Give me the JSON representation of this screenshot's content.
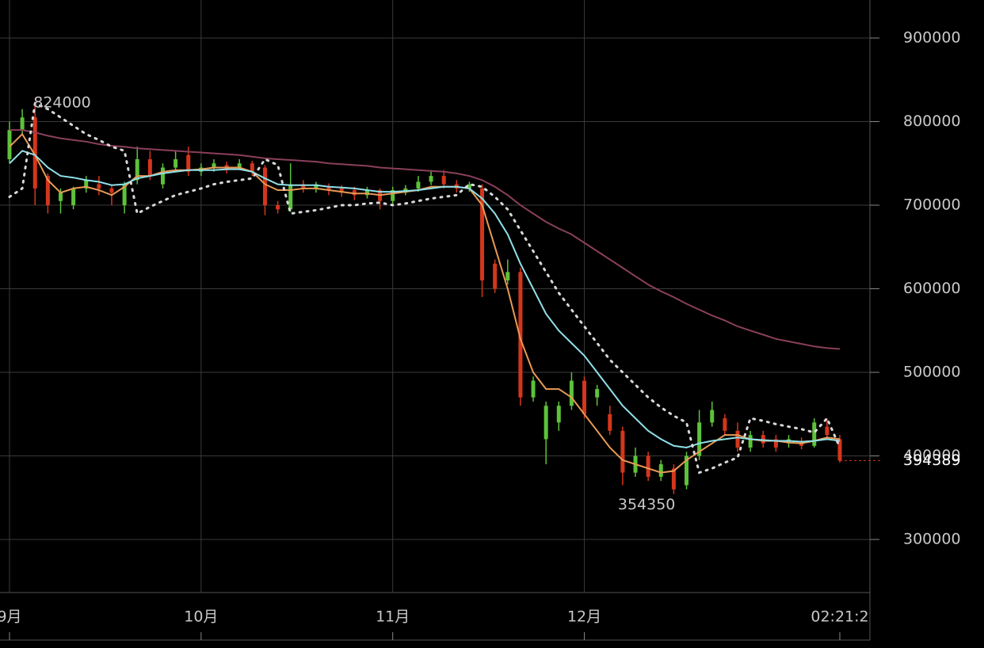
{
  "chart_data": {
    "type": "candlestick",
    "categories": [
      "9月",
      null,
      null,
      null,
      null,
      null,
      null,
      null,
      null,
      null,
      null,
      null,
      null,
      null,
      null,
      "10月",
      null,
      null,
      null,
      null,
      null,
      null,
      null,
      null,
      null,
      null,
      null,
      null,
      null,
      null,
      "11月",
      null,
      null,
      null,
      null,
      null,
      null,
      null,
      null,
      null,
      null,
      null,
      null,
      null,
      null,
      "12月",
      null,
      null,
      null,
      null,
      null,
      null,
      null,
      null,
      null,
      null,
      null,
      null,
      null,
      null,
      null,
      null,
      null,
      null,
      null,
      "02:21:2"
    ],
    "open": [
      755000,
      790000,
      805000,
      735000,
      705000,
      700000,
      720000,
      725000,
      720000,
      700000,
      730000,
      755000,
      725000,
      745000,
      760000,
      740000,
      745000,
      748000,
      745000,
      750000,
      745000,
      700000,
      695000,
      725000,
      720000,
      722000,
      720000,
      718000,
      712000,
      718000,
      705000,
      715000,
      720000,
      728000,
      735000,
      725000,
      720000,
      720000,
      630000,
      610000,
      620000,
      470000,
      420000,
      440000,
      460000,
      490000,
      470000,
      450000,
      430000,
      380000,
      400000,
      375000,
      385000,
      365000,
      400000,
      440000,
      445000,
      430000,
      410000,
      425000,
      420000,
      415000,
      418000,
      412000,
      435000,
      420000
    ],
    "high": [
      800000,
      815000,
      824000,
      738000,
      720000,
      722000,
      735000,
      735000,
      725000,
      728000,
      770000,
      765000,
      750000,
      765000,
      770000,
      750000,
      755000,
      752000,
      755000,
      753000,
      748000,
      705000,
      750000,
      730000,
      728000,
      726000,
      724000,
      722000,
      722000,
      720000,
      722000,
      724000,
      735000,
      742000,
      742000,
      730000,
      728000,
      725000,
      635000,
      635000,
      625000,
      495000,
      465000,
      465000,
      500000,
      495000,
      485000,
      460000,
      435000,
      410000,
      405000,
      395000,
      390000,
      405000,
      455000,
      465000,
      450000,
      440000,
      430000,
      430000,
      425000,
      425000,
      422000,
      445000,
      445000,
      425000
    ],
    "low": [
      750000,
      785000,
      700000,
      690000,
      690000,
      695000,
      715000,
      712000,
      700000,
      690000,
      725000,
      730000,
      720000,
      740000,
      735000,
      735000,
      740000,
      738000,
      742000,
      735000,
      688000,
      690000,
      692000,
      715000,
      715000,
      712000,
      710000,
      706000,
      708000,
      695000,
      700000,
      712000,
      716000,
      724000,
      720000,
      715000,
      716000,
      590000,
      595000,
      605000,
      460000,
      465000,
      390000,
      430000,
      455000,
      445000,
      460000,
      425000,
      365000,
      375000,
      370000,
      370000,
      354350,
      360000,
      395000,
      435000,
      425000,
      405000,
      405000,
      410000,
      405000,
      410000,
      408000,
      410000,
      420000,
      392000
    ],
    "close": [
      790000,
      805000,
      720000,
      700000,
      715000,
      720000,
      730000,
      720000,
      715000,
      725000,
      755000,
      735000,
      745000,
      755000,
      740000,
      745000,
      750000,
      742000,
      750000,
      740000,
      700000,
      695000,
      725000,
      720000,
      725000,
      718000,
      715000,
      712000,
      718000,
      705000,
      718000,
      720000,
      728000,
      735000,
      725000,
      720000,
      725000,
      610000,
      600000,
      620000,
      470000,
      490000,
      460000,
      460000,
      490000,
      450000,
      480000,
      430000,
      380000,
      400000,
      375000,
      390000,
      360000,
      400000,
      440000,
      455000,
      430000,
      410000,
      425000,
      415000,
      410000,
      420000,
      412000,
      440000,
      425000,
      394389
    ],
    "up_color": "#5cc23a",
    "down_color": "#d4361c",
    "lines": [
      {
        "color": "#e89a55",
        "style": "solid",
        "values": [
          770000,
          785000,
          760000,
          730000,
          715000,
          720000,
          722000,
          718000,
          712000,
          722000,
          735000,
          735000,
          740000,
          742000,
          742000,
          743000,
          745000,
          745000,
          745000,
          740000,
          725000,
          718000,
          718000,
          720000,
          720000,
          718000,
          716000,
          714000,
          714000,
          712000,
          714000,
          716000,
          718000,
          722000,
          722000,
          722000,
          720000,
          700000,
          650000,
          600000,
          540000,
          500000,
          480000,
          480000,
          470000,
          450000,
          430000,
          410000,
          395000,
          390000,
          385000,
          380000,
          382000,
          395000,
          405000,
          415000,
          425000,
          425000,
          420000,
          418000,
          418000,
          416000,
          415000,
          418000,
          422000,
          420000
        ]
      },
      {
        "color": "#8fe0e8",
        "style": "solid",
        "values": [
          750000,
          765000,
          760000,
          745000,
          735000,
          733000,
          730000,
          728000,
          724000,
          725000,
          732000,
          735000,
          738000,
          740000,
          742000,
          742000,
          742000,
          743000,
          743000,
          740000,
          732000,
          725000,
          724000,
          724000,
          724000,
          722000,
          721000,
          720000,
          718000,
          716000,
          716000,
          717000,
          718000,
          720000,
          722000,
          722000,
          720000,
          708000,
          690000,
          665000,
          630000,
          600000,
          570000,
          550000,
          535000,
          520000,
          500000,
          480000,
          460000,
          445000,
          430000,
          420000,
          412000,
          410000,
          415000,
          418000,
          420000,
          422000,
          420000,
          419000,
          418000,
          418000,
          417000,
          418000,
          420000,
          418000
        ]
      },
      {
        "color": "#8a3f5c",
        "style": "solid",
        "values": [
          790000,
          790000,
          787000,
          783000,
          780000,
          778000,
          776000,
          773000,
          771000,
          770000,
          768000,
          767000,
          766000,
          765000,
          764000,
          763000,
          762000,
          761000,
          760000,
          758000,
          756000,
          755000,
          754000,
          753000,
          752000,
          750000,
          749000,
          748000,
          747000,
          745000,
          744000,
          743000,
          742000,
          741000,
          740000,
          738000,
          735000,
          730000,
          722000,
          712000,
          700000,
          690000,
          680000,
          672000,
          665000,
          655000,
          645000,
          635000,
          625000,
          615000,
          605000,
          597000,
          590000,
          582000,
          575000,
          568000,
          562000,
          555000,
          550000,
          545000,
          540000,
          537000,
          534000,
          531000,
          529000,
          528000
        ]
      },
      {
        "color": "#d8d8d8",
        "style": "dotted",
        "values": [
          710000,
          720000,
          822000,
          815000,
          805000,
          795000,
          785000,
          778000,
          770000,
          765000,
          690000,
          698000,
          705000,
          712000,
          716000,
          720000,
          725000,
          728000,
          730000,
          732000,
          755000,
          748000,
          690000,
          692000,
          694000,
          697000,
          700000,
          700000,
          702000,
          703000,
          700000,
          702000,
          705000,
          708000,
          710000,
          712000,
          725000,
          722000,
          710000,
          695000,
          670000,
          645000,
          620000,
          595000,
          575000,
          555000,
          535000,
          515000,
          500000,
          485000,
          470000,
          458000,
          448000,
          440000,
          380000,
          385000,
          392000,
          398000,
          445000,
          442000,
          438000,
          435000,
          432000,
          428000,
          445000,
          410000
        ]
      }
    ],
    "ylim": [
      236500,
      945500
    ],
    "yticks": [
      300000,
      400000,
      500000,
      600000,
      700000,
      800000,
      900000
    ],
    "grid": true
  }
}
